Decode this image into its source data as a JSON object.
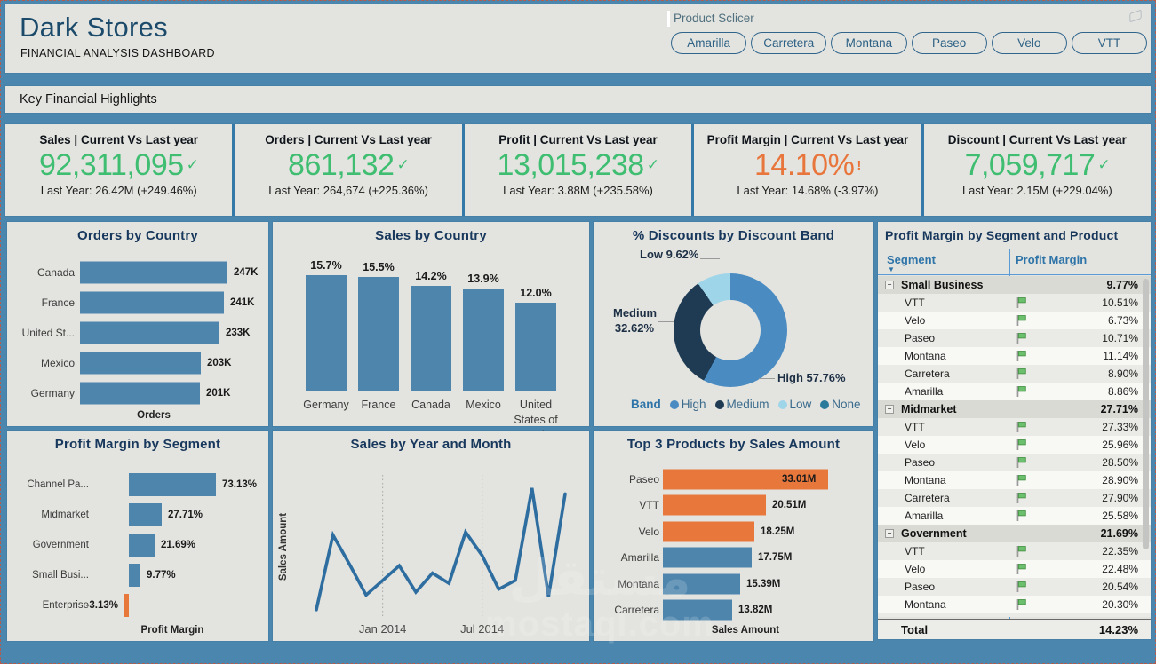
{
  "header": {
    "title": "Dark Stores",
    "subtitle": "FINANCIAL ANALYSIS DASHBOARD"
  },
  "slicer": {
    "title": "Product Sclicer",
    "buttons": [
      "Amarilla",
      "Carretera",
      "Montana",
      "Paseo",
      "Velo",
      "VTT"
    ]
  },
  "highlights_title": "Key Financial Highlights",
  "kpis": [
    {
      "title": "Sales | Current Vs Last year",
      "value": "92,311,095",
      "status": "check",
      "subtext": "Last Year: 26.42M (+249.46%)"
    },
    {
      "title": "Orders | Current Vs Last year",
      "value": "861,132",
      "status": "check",
      "subtext": "Last Year: 264,674 (+225.36%)"
    },
    {
      "title": "Profit | Current Vs Last year",
      "value": "13,015,238",
      "status": "check",
      "subtext": "Last Year: 3.88M (+235.58%)"
    },
    {
      "title": "Profit Margin | Current Vs Last year",
      "value": "14.10%",
      "status": "alert",
      "subtext": "Last Year: 14.68% (-3.97%)"
    },
    {
      "title": "Discount | Current Vs Last year",
      "value": "7,059,717",
      "status": "check",
      "subtext": "Last Year: 2.15M (+229.04%)"
    }
  ],
  "colors": {
    "good": "#3fbe72",
    "bad": "#e8763c",
    "bar_blue": "#4e85ad",
    "bar_orange": "#e8773c",
    "line_blue": "#2e6da0",
    "pie_high": "#4a8bc2",
    "pie_medium": "#1f3b54",
    "pie_low": "#9fd5e9",
    "pie_none": "#2a7b9b",
    "accent_blue": "#2e74a8"
  },
  "chart_data": [
    {
      "type": "bar",
      "orientation": "horizontal",
      "title": "Orders by Country",
      "xlabel": "Orders",
      "categories": [
        "Canada",
        "France",
        "United St...",
        "Mexico",
        "Germany"
      ],
      "values": [
        247,
        241,
        233,
        203,
        201
      ],
      "labels": [
        "247K",
        "241K",
        "233K",
        "203K",
        "201K"
      ]
    },
    {
      "type": "bar",
      "orientation": "vertical",
      "title": "Sales by Country",
      "categories": [
        "Germany",
        "France",
        "Canada",
        "Mexico",
        "United States of America"
      ],
      "values": [
        15.7,
        15.5,
        14.2,
        13.9,
        12.0
      ],
      "labels": [
        "15.7%",
        "15.5%",
        "14.2%",
        "13.9%",
        "12.0%"
      ]
    },
    {
      "type": "pie",
      "title": "% Discounts by Discount Band",
      "legend_title": "Band",
      "donut": true,
      "slices": [
        {
          "name": "High",
          "value": 57.76,
          "label": "High 57.76%"
        },
        {
          "name": "Medium",
          "value": 32.62,
          "label": "Medium 32.62%"
        },
        {
          "name": "Low",
          "value": 9.62,
          "label": "Low 9.62%"
        },
        {
          "name": "None",
          "value": 0,
          "label": ""
        }
      ]
    },
    {
      "type": "table",
      "title": "Profit Margin by Segment and Product",
      "columns": [
        "Segment",
        "Profit Margin"
      ],
      "rows": [
        {
          "type": "group",
          "label": "Small Business",
          "value": "9.77%"
        },
        {
          "type": "item",
          "label": "VTT",
          "value": "10.51%"
        },
        {
          "type": "item",
          "label": "Velo",
          "value": "6.73%"
        },
        {
          "type": "item",
          "label": "Paseo",
          "value": "10.71%"
        },
        {
          "type": "item",
          "label": "Montana",
          "value": "11.14%"
        },
        {
          "type": "item",
          "label": "Carretera",
          "value": "8.90%"
        },
        {
          "type": "item",
          "label": "Amarilla",
          "value": "8.86%"
        },
        {
          "type": "group",
          "label": "Midmarket",
          "value": "27.71%"
        },
        {
          "type": "item",
          "label": "VTT",
          "value": "27.33%"
        },
        {
          "type": "item",
          "label": "Velo",
          "value": "25.96%"
        },
        {
          "type": "item",
          "label": "Paseo",
          "value": "28.50%"
        },
        {
          "type": "item",
          "label": "Montana",
          "value": "28.90%"
        },
        {
          "type": "item",
          "label": "Carretera",
          "value": "27.90%"
        },
        {
          "type": "item",
          "label": "Amarilla",
          "value": "25.58%"
        },
        {
          "type": "group",
          "label": "Government",
          "value": "21.69%"
        },
        {
          "type": "item",
          "label": "VTT",
          "value": "22.35%"
        },
        {
          "type": "item",
          "label": "Velo",
          "value": "22.48%"
        },
        {
          "type": "item",
          "label": "Paseo",
          "value": "20.54%"
        },
        {
          "type": "item",
          "label": "Montana",
          "value": "20.30%"
        },
        {
          "type": "item",
          "label": "",
          "value": ""
        }
      ],
      "total_label": "Total",
      "total_value": "14.23%"
    },
    {
      "type": "bar",
      "orientation": "horizontal",
      "title": "Profit Margin by Segment",
      "xlabel": "Profit Margin",
      "categories": [
        "Channel Pa...",
        "Midmarket",
        "Government",
        "Small Busi...",
        "Enterprise"
      ],
      "values": [
        73.13,
        27.71,
        21.69,
        9.77,
        -3.13
      ],
      "labels": [
        "73.13%",
        "27.71%",
        "21.69%",
        "9.77%",
        "-3.13%"
      ]
    },
    {
      "type": "line",
      "title": "Sales by Year and Month",
      "ylabel": "Sales Amount",
      "x_ticks": [
        {
          "index": 4,
          "label": "Jan 2014"
        },
        {
          "index": 10,
          "label": "Jul 2014"
        }
      ],
      "points_normalized": [
        0.08,
        0.59,
        0.39,
        0.18,
        0.28,
        0.38,
        0.2,
        0.33,
        0.26,
        0.61,
        0.45,
        0.22,
        0.28,
        0.91,
        0.17,
        0.87
      ],
      "grid": "vertical-dotted",
      "legend": "none"
    },
    {
      "type": "bar",
      "orientation": "horizontal",
      "title": "Top 3 Products by Sales Amount",
      "xlabel": "Sales Amount",
      "categories": [
        "Paseo",
        "VTT",
        "Velo",
        "Amarilla",
        "Montana",
        "Carretera"
      ],
      "values": [
        33.01,
        20.51,
        18.25,
        17.75,
        15.39,
        13.82
      ],
      "labels": [
        "33.01M",
        "20.51M",
        "18.25M",
        "17.75M",
        "15.39M",
        "13.82M"
      ],
      "highlight_top": 3,
      "first_label_inside": true
    }
  ],
  "watermark": {
    "line1": "مستقل",
    "line2": "mostaql.com"
  },
  "icons": {
    "check": "check-icon",
    "alert": "exclamation-icon",
    "eraser": "eraser-icon",
    "flag": "green-flag-icon",
    "collapse": "collapse-minus-icon",
    "sort": "sort-descending-icon"
  }
}
